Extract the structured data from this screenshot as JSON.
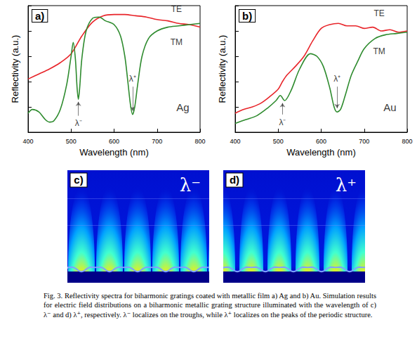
{
  "chart_data": [
    {
      "type": "line",
      "title": "a)",
      "xlabel": "Wavelength (nm)",
      "ylabel": "Reflectivity (a.u.)",
      "xlim": [
        400,
        800
      ],
      "xticks": [
        400,
        500,
        600,
        700,
        800
      ],
      "ylim": [
        0,
        1
      ],
      "yticks": [
        0,
        0.2,
        0.4,
        0.6,
        0.8,
        1
      ],
      "tick_labels": "x",
      "grid": false,
      "series": [
        {
          "color": "#e8252a",
          "x": [
            400,
            425,
            450,
            475,
            500,
            525,
            550,
            575,
            600,
            625,
            650,
            675,
            700,
            725,
            750,
            775,
            800
          ],
          "values": [
            0.42,
            0.46,
            0.5,
            0.55,
            0.62,
            0.76,
            0.87,
            0.92,
            0.93,
            0.93,
            0.92,
            0.91,
            0.89,
            0.88,
            0.86,
            0.85,
            0.83
          ]
        },
        {
          "color": "#2e8b2e",
          "x": [
            400,
            410,
            425,
            440,
            450,
            460,
            475,
            490,
            500,
            505,
            510,
            514,
            517,
            520,
            525,
            535,
            550,
            565,
            580,
            600,
            615,
            625,
            632,
            638,
            643,
            648,
            655,
            665,
            680,
            700,
            725,
            750,
            775,
            800
          ],
          "values": [
            0.15,
            0.18,
            0.16,
            0.1,
            0.08,
            0.09,
            0.18,
            0.38,
            0.6,
            0.71,
            0.58,
            0.35,
            0.26,
            0.35,
            0.58,
            0.8,
            0.9,
            0.91,
            0.88,
            0.85,
            0.76,
            0.6,
            0.4,
            0.22,
            0.14,
            0.2,
            0.38,
            0.6,
            0.74,
            0.8,
            0.83,
            0.84,
            0.85,
            0.86
          ]
        }
      ],
      "annotations": [
        {
          "text": "TE",
          "x": 745,
          "y": 0.97
        },
        {
          "text": "TM",
          "x": 745,
          "y": 0.71
        },
        {
          "text": "Ag",
          "x": 760,
          "y": 0.2
        },
        {
          "text": "λ⁻",
          "x": 517,
          "y": 0.07,
          "arrow_to": 0.24
        },
        {
          "text": "λ⁺",
          "x": 643,
          "y": 0.42,
          "arrow_to": 0.17
        }
      ]
    },
    {
      "type": "line",
      "title": "b)",
      "xlabel": "Wavelength (nm)",
      "ylabel": "Reflectivity (a.u.)",
      "xlim": [
        400,
        800
      ],
      "xticks": [
        400,
        500,
        600,
        700,
        800
      ],
      "ylim": [
        0,
        1
      ],
      "yticks": [
        0,
        0.2,
        0.4,
        0.6,
        0.8,
        1
      ],
      "tick_labels": "x",
      "grid": false,
      "series": [
        {
          "color": "#e8252a",
          "x": [
            400,
            420,
            440,
            460,
            480,
            500,
            510,
            520,
            540,
            560,
            580,
            600,
            620,
            640,
            660,
            680,
            700,
            720,
            740,
            760,
            780,
            800
          ],
          "values": [
            0.15,
            0.18,
            0.2,
            0.23,
            0.28,
            0.34,
            0.4,
            0.45,
            0.52,
            0.6,
            0.72,
            0.82,
            0.85,
            0.86,
            0.84,
            0.84,
            0.82,
            0.83,
            0.8,
            0.81,
            0.79,
            0.8
          ]
        },
        {
          "color": "#2e8b2e",
          "x": [
            400,
            425,
            450,
            475,
            495,
            505,
            515,
            530,
            550,
            575,
            590,
            605,
            620,
            630,
            637,
            645,
            655,
            670,
            685,
            700,
            725,
            750,
            775,
            800
          ],
          "values": [
            0.07,
            0.1,
            0.13,
            0.19,
            0.25,
            0.29,
            0.25,
            0.33,
            0.5,
            0.62,
            0.6,
            0.52,
            0.35,
            0.2,
            0.16,
            0.18,
            0.28,
            0.45,
            0.56,
            0.66,
            0.74,
            0.77,
            0.78,
            0.79
          ]
        }
      ],
      "annotations": [
        {
          "text": "TE",
          "x": 735,
          "y": 0.94
        },
        {
          "text": "TM",
          "x": 735,
          "y": 0.64
        },
        {
          "text": "Au",
          "x": 760,
          "y": 0.2
        },
        {
          "text": "λ⁻",
          "x": 510,
          "y": 0.08,
          "arrow_to": 0.23
        },
        {
          "text": "λ⁺",
          "x": 637,
          "y": 0.42,
          "arrow_to": 0.19
        }
      ]
    }
  ],
  "figure": {
    "images": [
      {
        "title": "c)",
        "label": "λ⁻"
      },
      {
        "title": "d)",
        "label": "λ⁺"
      }
    ],
    "caption": "Fig. 3. Reflectivity spectra for biharmonic gratings coated with metallic film a) Ag and b) Au. Simulation results for electric field distributions on a biharmonic metallic grating structure illuminated with the wavelength of c) λ⁻ and d) λ⁺, respectively. λ⁻ localizes on the troughs, while λ⁺ localizes on the peaks of the periodic structure."
  }
}
